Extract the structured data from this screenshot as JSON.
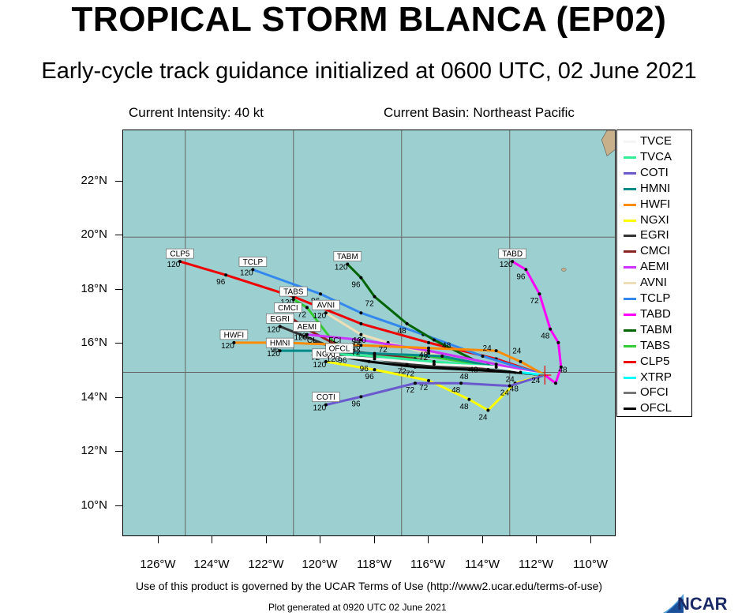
{
  "header": {
    "title": "TROPICAL STORM BLANCA (EP02)",
    "subtitle": "Early-cycle track guidance initialized at 0600 UTC, 02 June 2021"
  },
  "info": {
    "intensity": "Current Intensity: 40 kt",
    "basin": "Current Basin: Northeast Pacific"
  },
  "axes": {
    "lat_labels": [
      "22°N",
      "20°N",
      "18°N",
      "16°N",
      "14°N",
      "12°N",
      "10°N"
    ],
    "lon_labels": [
      "126°W",
      "124°W",
      "122°W",
      "120°W",
      "118°W",
      "116°W",
      "114°W",
      "112°W",
      "110°W"
    ]
  },
  "footer": {
    "terms": "Use of this product is governed by the UCAR Terms of Use (http://www2.ucar.edu/terms-of-use)",
    "generated": "Plot generated at 0920 UTC   02 June 2021",
    "logo_text": "NCAR"
  },
  "legend": [
    {
      "name": "TVCE",
      "color": "#f4f4f4"
    },
    {
      "name": "TVCA",
      "color": "#33ee99"
    },
    {
      "name": "COTI",
      "color": "#6a5acd"
    },
    {
      "name": "HMNI",
      "color": "#008b8b"
    },
    {
      "name": "HWFI",
      "color": "#ff8c00"
    },
    {
      "name": "NGXI",
      "color": "#ffff00"
    },
    {
      "name": "EGRI",
      "color": "#333333"
    },
    {
      "name": "CMCI",
      "color": "#8b2323"
    },
    {
      "name": "AEMI",
      "color": "#cc33ff"
    },
    {
      "name": "AVNI",
      "color": "#eedfb8"
    },
    {
      "name": "TCLP",
      "color": "#3388ee"
    },
    {
      "name": "TABD",
      "color": "#ff00ff"
    },
    {
      "name": "TABM",
      "color": "#006400"
    },
    {
      "name": "TABS",
      "color": "#33cc33"
    },
    {
      "name": "CLP5",
      "color": "#ee0000"
    },
    {
      "name": "XTRP",
      "color": "#00ffff"
    },
    {
      "name": "OFCI",
      "color": "#777777"
    },
    {
      "name": "OFCL",
      "color": "#000000"
    }
  ],
  "map_data": {
    "colors": {
      "ocean": "#9ccfcf",
      "land": "#c8b08a"
    },
    "tracks": [
      {
        "name": "CLP5",
        "label": "CLP5",
        "end_label": "120",
        "color": "#ee0000",
        "points": [
          [
            -111.7,
            14.9
          ],
          [
            -113.5,
            15.5
          ],
          [
            -116,
            16.1
          ],
          [
            -118.5,
            16.8
          ],
          [
            -121,
            17.8
          ],
          [
            -123.5,
            18.6
          ],
          [
            -125.2,
            19.1
          ]
        ],
        "hours": [
          "96"
        ]
      },
      {
        "name": "TCLP",
        "label": "TCLP",
        "end_label": "120",
        "color": "#3388ee",
        "points": [
          [
            -111.7,
            14.9
          ],
          [
            -114,
            15.6
          ],
          [
            -116.2,
            16.4
          ],
          [
            -118.5,
            17.2
          ],
          [
            -120,
            17.9
          ],
          [
            -122.5,
            18.8
          ]
        ],
        "hours": [
          "96"
        ]
      },
      {
        "name": "TABM",
        "label": "TABM",
        "end_label": "120",
        "color": "#006400",
        "points": [
          [
            -111.7,
            14.9
          ],
          [
            -114,
            15.3
          ],
          [
            -115.8,
            16.2
          ],
          [
            -116.8,
            16.8
          ],
          [
            -118,
            17.8
          ],
          [
            -118.5,
            18.5
          ],
          [
            -119,
            19
          ]
        ],
        "hours": [
          "48",
          "72",
          "96"
        ]
      },
      {
        "name": "TABD",
        "label": "TABD",
        "end_label": "120",
        "color": "#ff00ff",
        "points": [
          [
            -111.7,
            14.9
          ],
          [
            -111.3,
            14.6
          ],
          [
            -111.1,
            15.2
          ],
          [
            -111.2,
            16.1
          ],
          [
            -111.5,
            16.6
          ],
          [
            -111.9,
            17.9
          ],
          [
            -112.4,
            18.8
          ],
          [
            -112.9,
            19.1
          ]
        ],
        "hours": [
          "48",
          "72",
          "96"
        ]
      },
      {
        "name": "TABS",
        "label": "TABS",
        "end_label": "120",
        "color": "#33cc33",
        "points": [
          [
            -111.7,
            14.9
          ],
          [
            -113.5,
            15.2
          ],
          [
            -116,
            15.6
          ],
          [
            -118.5,
            15.6
          ],
          [
            -119.5,
            16.1
          ],
          [
            -120.5,
            17.4
          ],
          [
            -121,
            17.7
          ]
        ],
        "hours": [
          "72"
        ]
      },
      {
        "name": "AVNI",
        "label": "AVNI",
        "end_label": "120",
        "color": "#eedfb8",
        "points": [
          [
            -111.7,
            14.9
          ],
          [
            -113.8,
            15.3
          ],
          [
            -116,
            15.7
          ],
          [
            -117.5,
            16.1
          ],
          [
            -118.5,
            16.4
          ],
          [
            -119.8,
            17.2
          ]
        ],
        "hours": [
          "72",
          "96"
        ]
      },
      {
        "name": "CMCI",
        "label": "CMCI",
        "end_label": "120",
        "color": "#8b2323",
        "points": [
          [
            -111.7,
            14.9
          ],
          [
            -113.8,
            15.1
          ],
          [
            -116.5,
            15.5
          ],
          [
            -119,
            15.8
          ],
          [
            -120.5,
            16.6
          ],
          [
            -121.2,
            17.1
          ]
        ],
        "hours": [
          "72"
        ]
      },
      {
        "name": "EGRI",
        "label": "EGRI",
        "end_label": "120",
        "color": "#333333",
        "points": [
          [
            -111.7,
            14.9
          ],
          [
            -113.8,
            15.1
          ],
          [
            -116.8,
            15.3
          ],
          [
            -119,
            15.7
          ],
          [
            -121.5,
            16.7
          ]
        ],
        "hours": [
          "72",
          "96"
        ]
      },
      {
        "name": "AEMI",
        "label": "AEMI",
        "end_label": "120",
        "color": "#cc33ff",
        "points": [
          [
            -111.7,
            14.9
          ],
          [
            -113.5,
            15.3
          ],
          [
            -116,
            15.8
          ],
          [
            -118.5,
            16.2
          ],
          [
            -120.5,
            16.4
          ]
        ],
        "hours": [
          "72",
          "96"
        ]
      },
      {
        "name": "HWFI",
        "label": "HWFI",
        "end_label": "120",
        "color": "#ff8c00",
        "points": [
          [
            -111.7,
            14.9
          ],
          [
            -112.6,
            15.4
          ],
          [
            -113.5,
            15.8
          ],
          [
            -116,
            15.9
          ],
          [
            -118.5,
            16.0
          ],
          [
            -121.5,
            16.1
          ],
          [
            -123.2,
            16.1
          ]
        ],
        "hours": [
          "48",
          "72",
          "96"
        ]
      },
      {
        "name": "HMNI",
        "label": "HMNI",
        "end_label": "120",
        "color": "#008b8b",
        "points": [
          [
            -111.7,
            14.9
          ],
          [
            -113,
            15.1
          ],
          [
            -115.5,
            15.6
          ],
          [
            -118,
            15.7
          ],
          [
            -120,
            15.8
          ],
          [
            -121.5,
            15.8
          ]
        ],
        "hours": [
          "72"
        ]
      },
      {
        "name": "NGXI",
        "label": "NGXI",
        "end_label": "120",
        "color": "#ffff00",
        "points": [
          [
            -111.7,
            14.9
          ],
          [
            -112.8,
            14.6
          ],
          [
            -113.8,
            13.6
          ],
          [
            -114.5,
            14.0
          ],
          [
            -116,
            14.7
          ],
          [
            -118,
            15.1
          ],
          [
            -119.8,
            15.4
          ]
        ],
        "hours": [
          "24",
          "48",
          "72",
          "96"
        ]
      },
      {
        "name": "COTI",
        "label": "COTI",
        "end_label": "120",
        "color": "#6a5acd",
        "points": [
          [
            -111.7,
            14.9
          ],
          [
            -113,
            14.5
          ],
          [
            -114.8,
            14.6
          ],
          [
            -116.5,
            14.6
          ],
          [
            -118.5,
            14.1
          ],
          [
            -119.8,
            13.8
          ]
        ],
        "hours": [
          "24",
          "48",
          "72",
          "96"
        ]
      },
      {
        "name": "TVCA",
        "label": "",
        "end_label": "",
        "color": "#33ee99",
        "points": [
          [
            -111.7,
            14.9
          ],
          [
            -113.5,
            15.2
          ],
          [
            -115.8,
            15.4
          ],
          [
            -118,
            15.6
          ],
          [
            -119.8,
            15.7
          ]
        ],
        "hours": []
      },
      {
        "name": "OFCL",
        "label": "OFCL",
        "end_label": "120",
        "color": "#000000",
        "points": [
          [
            -111.7,
            14.9
          ],
          [
            -112.8,
            15.0
          ],
          [
            -114.5,
            15.1
          ],
          [
            -116.5,
            15.2
          ],
          [
            -118.2,
            15.4
          ],
          [
            -119.3,
            15.6
          ]
        ],
        "hours": [
          "24",
          "48",
          "72",
          "96"
        ]
      },
      {
        "name": "TVCE",
        "label": "",
        "end_label": "",
        "color": "#f4f4f4",
        "points": [
          [
            -111.7,
            14.9
          ],
          [
            -113.5,
            15.2
          ],
          [
            -115.8,
            15.3
          ],
          [
            -118,
            15.5
          ],
          [
            -119.8,
            15.6
          ]
        ],
        "hours": []
      },
      {
        "name": "XTRP",
        "label": "",
        "end_label": "",
        "color": "#00ffff",
        "points": [
          [
            -111.7,
            14.9
          ],
          [
            -112.6,
            15.0
          ]
        ],
        "hours": []
      }
    ],
    "extra_labels": [
      {
        "text": "FCI",
        "lon": -119.7,
        "lat": 16.1
      },
      {
        "text": "CL",
        "lon": -120.5,
        "lat": 16.1
      },
      {
        "text": "120",
        "lon": -118.8,
        "lat": 16.1
      },
      {
        "text": "24",
        "lon": -112.2,
        "lat": 14.6
      },
      {
        "text": "48",
        "lon": -111.2,
        "lat": 15.0
      },
      {
        "text": "24",
        "lon": -114.0,
        "lat": 15.8
      },
      {
        "text": "24",
        "lon": -112.9,
        "lat": 15.7
      },
      {
        "text": "48",
        "lon": -115.5,
        "lat": 15.9
      },
      {
        "text": "48",
        "lon": -114.5,
        "lat": 15.0
      },
      {
        "text": "48",
        "lon": -113.0,
        "lat": 14.3
      }
    ]
  }
}
